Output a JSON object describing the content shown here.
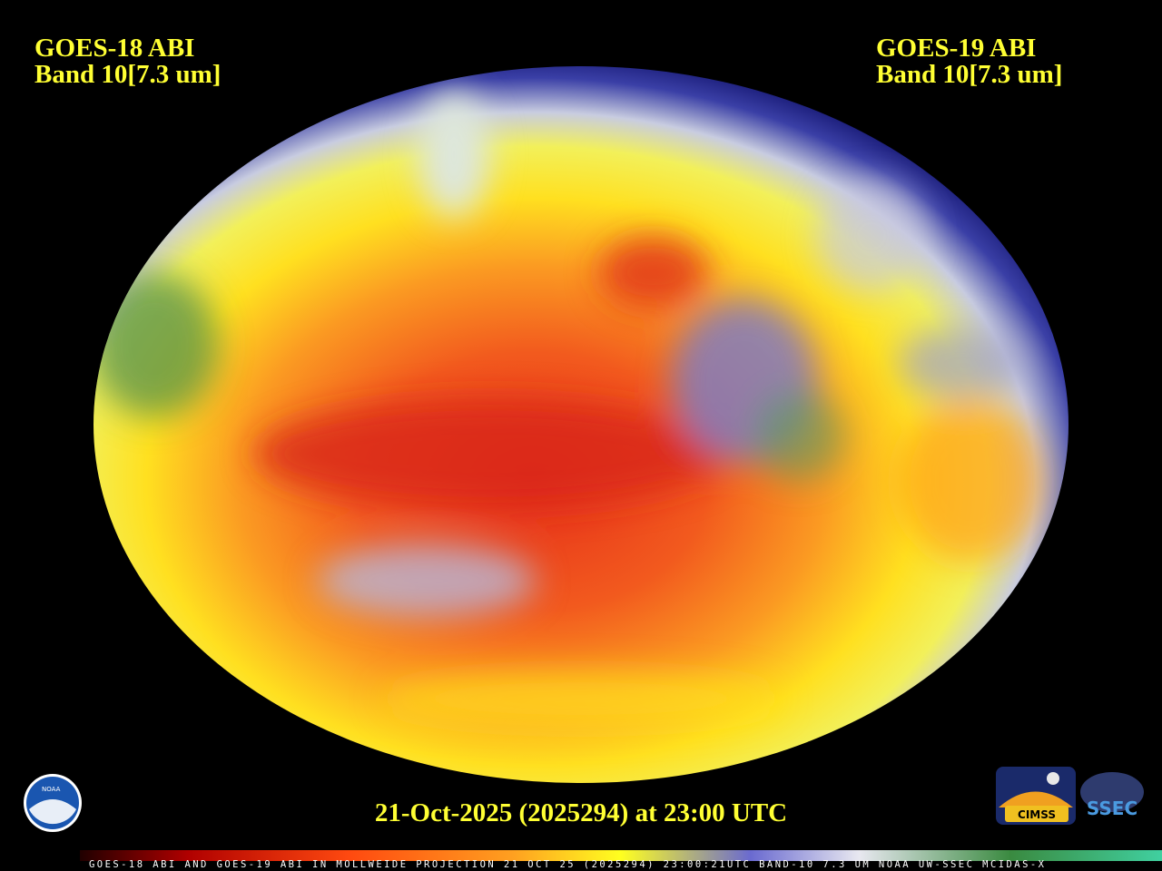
{
  "header": {
    "left": {
      "line1": "GOES-18 ABI",
      "line2": "Band 10[7.3 um]"
    },
    "right": {
      "line1": "GOES-19 ABI",
      "line2": "Band 10[7.3 um]"
    }
  },
  "timestamp": "21-Oct-2025 (2025294) at 23:00 UTC",
  "caption": "GOES-18 ABI AND GOES-19 ABI IN MOLLWEIDE PROJECTION 21 OCT 25 (2025294) 23:00:21UTC BAND-10 7.3 UM NOAA UW-SSEC MCIDAS-X",
  "logos": {
    "noaa": "NOAA",
    "cimss": "CIMSS",
    "ssec": "SSEC"
  }
}
